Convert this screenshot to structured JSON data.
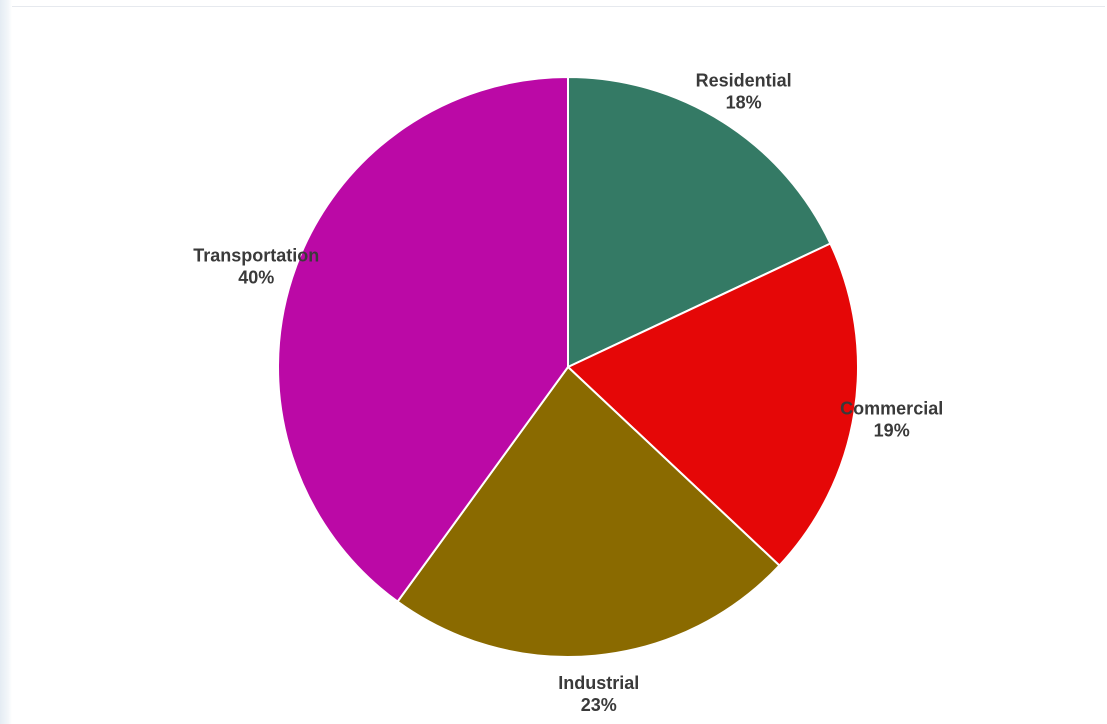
{
  "chart_data": {
    "type": "pie",
    "title": "",
    "start_angle_deg": 0,
    "direction": "clockwise",
    "slices": [
      {
        "label": "Residential",
        "value": 18,
        "value_label": "18%",
        "color": "#347a65"
      },
      {
        "label": "Commercial",
        "value": 19,
        "value_label": "19%",
        "color": "#e50707"
      },
      {
        "label": "Industrial",
        "value": 23,
        "value_label": "23%",
        "color": "#8a6a00"
      },
      {
        "label": "Transportation",
        "value": 40,
        "value_label": "40%",
        "color": "#bb09a6"
      }
    ],
    "slice_border_color": "#ffffff",
    "label_color": "#3a3a3a"
  }
}
